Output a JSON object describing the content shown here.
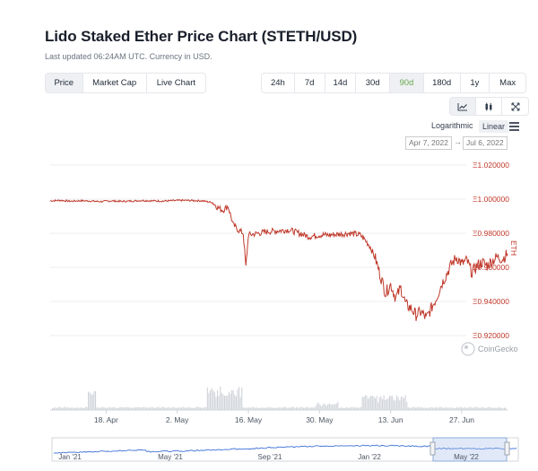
{
  "header": {
    "title": "Lido Staked Ether Price Chart (STETH/USD)",
    "updated": "Last updated 06:24AM UTC. Currency in USD."
  },
  "view_tabs": [
    "Price",
    "Market Cap",
    "Live Chart"
  ],
  "range_tabs": [
    "24h",
    "7d",
    "14d",
    "30d",
    "90d",
    "180d",
    "1y",
    "Max"
  ],
  "active_range": "90d",
  "scale": {
    "log_label": "Logarithmic",
    "linear_label": "Linear",
    "active": "Linear"
  },
  "date_range": {
    "from": "Apr 7, 2022",
    "to": "Jul 6, 2022",
    "arrow": "→"
  },
  "watermark": "CoinGecko",
  "colors": {
    "price_line": "#c0392b",
    "volume": "#cfd3d8",
    "navigator": "#3b6fd6",
    "green_active": "#6aa84f"
  },
  "chart_data": {
    "type": "line",
    "y_unit": "ETH",
    "ylim": [
      0.92,
      1.02
    ],
    "yticks": [
      {
        "value": 1.02,
        "label": "Ξ1.020000"
      },
      {
        "value": 1.0,
        "label": "Ξ1.000000"
      },
      {
        "value": 0.98,
        "label": "Ξ0.980000"
      },
      {
        "value": 0.96,
        "label": "Ξ0.960000"
      },
      {
        "value": 0.94,
        "label": "Ξ0.940000"
      },
      {
        "value": 0.92,
        "label": "Ξ0.920000"
      }
    ],
    "x_range": [
      "2022-04-07",
      "2022-07-06"
    ],
    "xticks": [
      {
        "date": "2022-04-18",
        "label": "18. Apr"
      },
      {
        "date": "2022-05-02",
        "label": "2. May"
      },
      {
        "date": "2022-05-16",
        "label": "16. May"
      },
      {
        "date": "2022-05-30",
        "label": "30. May"
      },
      {
        "date": "2022-06-13",
        "label": "13. Jun"
      },
      {
        "date": "2022-06-27",
        "label": "27. Jun"
      }
    ],
    "series": [
      {
        "points": [
          [
            "2022-04-07",
            0.999
          ],
          [
            "2022-04-09",
            0.9993
          ],
          [
            "2022-04-11",
            0.9988
          ],
          [
            "2022-04-13",
            0.9991
          ],
          [
            "2022-04-15",
            0.9989
          ],
          [
            "2022-04-17",
            0.9986
          ],
          [
            "2022-04-19",
            0.999
          ],
          [
            "2022-04-21",
            0.9987
          ],
          [
            "2022-04-23",
            0.9989
          ],
          [
            "2022-04-25",
            0.9992
          ],
          [
            "2022-04-27",
            0.999
          ],
          [
            "2022-04-29",
            0.9989
          ],
          [
            "2022-05-01",
            0.9991
          ],
          [
            "2022-05-03",
            0.9993
          ],
          [
            "2022-05-05",
            0.9992
          ],
          [
            "2022-05-07",
            0.999
          ],
          [
            "2022-05-09",
            0.998
          ],
          [
            "2022-05-10",
            0.995
          ],
          [
            "2022-05-11",
            0.9935
          ],
          [
            "2022-05-12",
            0.996
          ],
          [
            "2022-05-13",
            0.985
          ],
          [
            "2022-05-14",
            0.982
          ],
          [
            "2022-05-15",
            0.98
          ],
          [
            "2022-05-15T12:00",
            0.96
          ],
          [
            "2022-05-16",
            0.979
          ],
          [
            "2022-05-18",
            0.98
          ],
          [
            "2022-05-20",
            0.981
          ],
          [
            "2022-05-22",
            0.9815
          ],
          [
            "2022-05-24",
            0.982
          ],
          [
            "2022-05-26",
            0.98
          ],
          [
            "2022-05-28",
            0.978
          ],
          [
            "2022-05-30",
            0.979
          ],
          [
            "2022-06-01",
            0.979
          ],
          [
            "2022-06-03",
            0.9795
          ],
          [
            "2022-06-05",
            0.98
          ],
          [
            "2022-06-07",
            0.979
          ],
          [
            "2022-06-08",
            0.976
          ],
          [
            "2022-06-09",
            0.972
          ],
          [
            "2022-06-10",
            0.965
          ],
          [
            "2022-06-11",
            0.955
          ],
          [
            "2022-06-12",
            0.945
          ],
          [
            "2022-06-13",
            0.95
          ],
          [
            "2022-06-14",
            0.942
          ],
          [
            "2022-06-15",
            0.948
          ],
          [
            "2022-06-16",
            0.938
          ],
          [
            "2022-06-17",
            0.936
          ],
          [
            "2022-06-18",
            0.932
          ],
          [
            "2022-06-19",
            0.934
          ],
          [
            "2022-06-20",
            0.93
          ],
          [
            "2022-06-21",
            0.936
          ],
          [
            "2022-06-22",
            0.942
          ],
          [
            "2022-06-23",
            0.95
          ],
          [
            "2022-06-24",
            0.956
          ],
          [
            "2022-06-25",
            0.962
          ],
          [
            "2022-06-26",
            0.966
          ],
          [
            "2022-06-27",
            0.962
          ],
          [
            "2022-06-28",
            0.964
          ],
          [
            "2022-06-29",
            0.957
          ],
          [
            "2022-06-30",
            0.961
          ],
          [
            "2022-07-01",
            0.963
          ],
          [
            "2022-07-02",
            0.961
          ],
          [
            "2022-07-03",
            0.964
          ],
          [
            "2022-07-04",
            0.966
          ],
          [
            "2022-07-05",
            0.965
          ],
          [
            "2022-07-06",
            0.968
          ]
        ]
      }
    ],
    "navigator_ticks": [
      "Jan '21",
      "May '21",
      "Sep '21",
      "Jan '22",
      "May '22"
    ]
  }
}
